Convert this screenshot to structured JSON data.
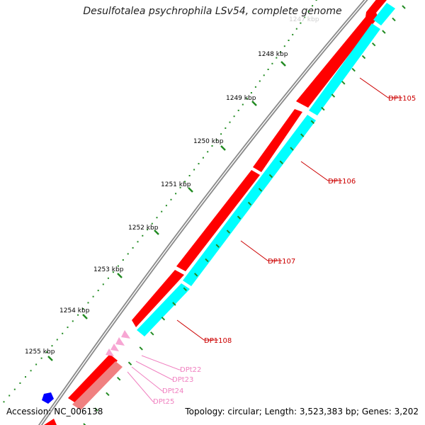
{
  "title": "Desulfotalea psychrophila LSv54, complete genome",
  "accession": "Accession: NC_006138",
  "summary": "Topology: circular; Length: 3,523,383 bp; Genes: 3,202",
  "colors": {
    "backbone": "#8a8a8a",
    "cds_forward": "#ff0000",
    "cds_forward_light": "#f08080",
    "cds_reverse": "#00ffff",
    "trna": "#f7a6d3",
    "trna_label": "#f080c0",
    "gene_label": "#cc0000",
    "tick": "#228b22",
    "other_feature": "#0000ff"
  },
  "scale_labels": [
    "1248 kbp",
    "1249 kbp",
    "1250 kbp",
    "1251 kbp",
    "1252 kbp",
    "1253 kbp",
    "1254 kbp",
    "1255 kbp"
  ],
  "gene_labels": [
    "DP1105",
    "DP1106",
    "DP1107",
    "DP1108"
  ],
  "trna_labels": [
    "DPt22",
    "DPt23",
    "DPt24",
    "DPt25"
  ]
}
